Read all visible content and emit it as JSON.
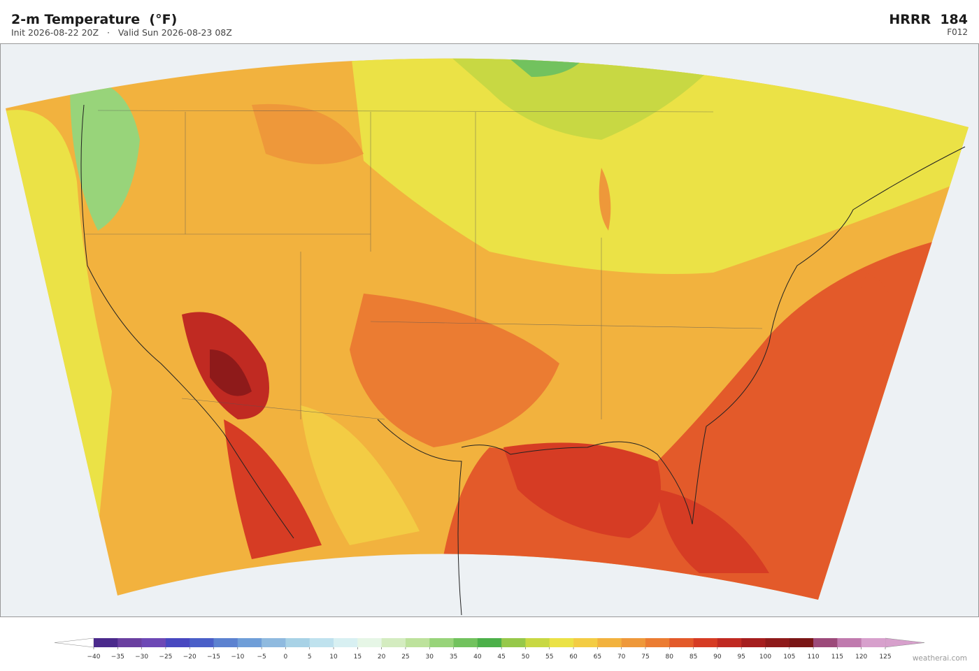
{
  "header": {
    "title": "2-m Temperature  (°F)",
    "subtitle": "Init 2026-08-22 20Z   ·   Valid Sun 2026-08-23 08Z",
    "model": "HRRR  184",
    "forecast_hour": "F012"
  },
  "colorbar": {
    "ticks": [
      {
        "value": -40,
        "label": "−40"
      },
      {
        "value": -35,
        "label": "−35"
      },
      {
        "value": -30,
        "label": "−30"
      },
      {
        "value": -25,
        "label": "−25"
      },
      {
        "value": -20,
        "label": "−20"
      },
      {
        "value": -15,
        "label": "−15"
      },
      {
        "value": -10,
        "label": "−10"
      },
      {
        "value": -5,
        "label": "−5"
      },
      0,
      5,
      10,
      15,
      20,
      25,
      30,
      35,
      40,
      45,
      50,
      55,
      60,
      65,
      70,
      75,
      80,
      85,
      90,
      95,
      100,
      105,
      110,
      115,
      120,
      125
    ],
    "colors": [
      "#4b2a8c",
      "#6a3fa0",
      "#6d48b5",
      "#4848c0",
      "#4a5fc8",
      "#5c82d0",
      "#6f9ed8",
      "#8fbadf",
      "#a8d2e6",
      "#bfe2ee",
      "#d8f0f2",
      "#e6f6e6",
      "#d4ecc0",
      "#bde29c",
      "#98d47a",
      "#72c25e",
      "#4cb04a",
      "#96c84a",
      "#c8d843",
      "#ebe246",
      "#f3cc44",
      "#f2b23e",
      "#ee983a",
      "#eb7c32",
      "#e35a2a",
      "#d63c24",
      "#c02a22",
      "#a51e1e",
      "#8e1a1a",
      "#7a1616",
      "#9c4a7a",
      "#c07aae",
      "#d7a0cc"
    ],
    "under_color": "#ffffff",
    "over_color": "#d7a0cc"
  },
  "watermark": "weatherai.com"
}
